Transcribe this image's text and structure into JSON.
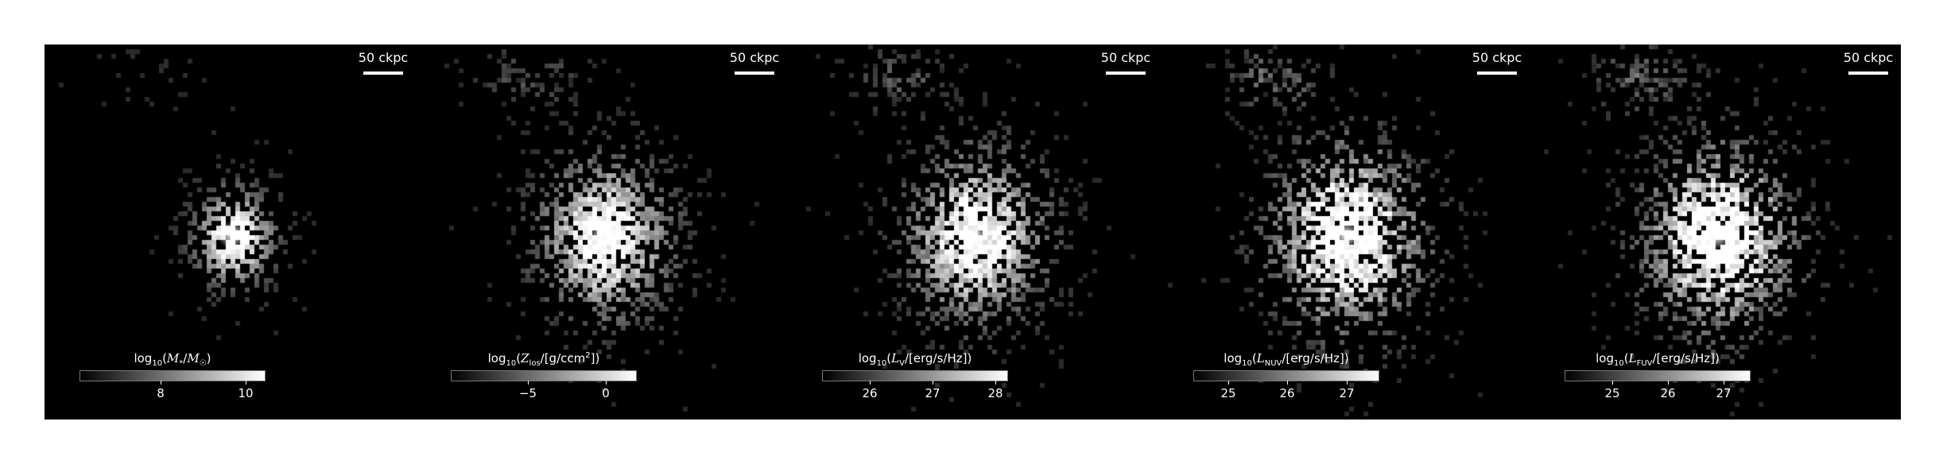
{
  "figure": {
    "colors": {
      "panel_bg": "#000000",
      "text": "#ffffff"
    },
    "panels": [
      {
        "id": "mass",
        "scale_label": "50 ckpc",
        "colorbar": {
          "label_prefix": "log",
          "label_sub": "10",
          "label_rest": "(M",
          "label_sub2": "*",
          "label_mid": "/M",
          "label_sub3": "☉",
          "label_end": ")",
          "ticks": [
            {
              "label": "8",
              "frac": 0.44
            },
            {
              "label": "10",
              "frac": 0.9
            }
          ]
        },
        "spread": 0.22,
        "core": 1.0,
        "noise": 0.35
      },
      {
        "id": "metal",
        "scale_label": "50 ckpc",
        "colorbar": {
          "label_prefix": "log",
          "label_sub": "10",
          "label_rest": "(Z",
          "label_sub2": "los",
          "label_mid": "/[g/ccm",
          "label_sub3": "",
          "label_end": "])",
          "ticks": [
            {
              "label": "−5",
              "frac": 0.42
            },
            {
              "label": "0",
              "frac": 0.84
            }
          ]
        },
        "spread": 0.34,
        "core": 0.9,
        "noise": 0.55
      },
      {
        "id": "lv",
        "scale_label": "50 ckpc",
        "colorbar": {
          "label_prefix": "log",
          "label_sub": "10",
          "label_rest": "(L",
          "label_sub2": "V",
          "label_mid": "/[erg/s/Hz])",
          "label_sub3": "",
          "label_end": "",
          "ticks": [
            {
              "label": "26",
              "frac": 0.26
            },
            {
              "label": "27",
              "frac": 0.6
            },
            {
              "label": "28",
              "frac": 0.94
            }
          ]
        },
        "spread": 0.36,
        "core": 0.85,
        "noise": 0.6
      },
      {
        "id": "lnuv",
        "scale_label": "50 ckpc",
        "colorbar": {
          "label_prefix": "log",
          "label_sub": "10",
          "label_rest": "(L",
          "label_sub2": "NUV",
          "label_mid": "/[erg/s/Hz])",
          "label_sub3": "",
          "label_end": "",
          "ticks": [
            {
              "label": "25",
              "frac": 0.19
            },
            {
              "label": "26",
              "frac": 0.51
            },
            {
              "label": "27",
              "frac": 0.83
            }
          ]
        },
        "spread": 0.38,
        "core": 0.9,
        "noise": 0.8
      },
      {
        "id": "lfuv",
        "scale_label": "50 ckpc",
        "colorbar": {
          "label_prefix": "log",
          "label_sub": "10",
          "label_rest": "(L",
          "label_sub2": "FUV",
          "label_mid": "/[erg/s/Hz])",
          "label_sub3": "",
          "label_end": "",
          "ticks": [
            {
              "label": "25",
              "frac": 0.26
            },
            {
              "label": "26",
              "frac": 0.56
            },
            {
              "label": "27",
              "frac": 0.86
            }
          ]
        },
        "spread": 0.38,
        "core": 0.9,
        "noise": 0.8
      }
    ]
  }
}
